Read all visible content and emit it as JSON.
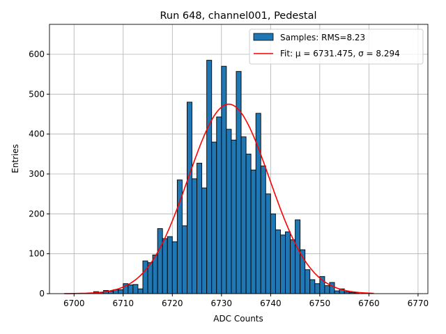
{
  "chart_data": {
    "type": "bar",
    "title": "Run 648, channel001, Pedestal",
    "xlabel": "ADC Counts",
    "ylabel": "Entries",
    "xlim": [
      6695,
      6772
    ],
    "ylim": [
      0,
      675
    ],
    "grid": true,
    "legend_placement": "top-right",
    "xticks": [
      6700,
      6710,
      6720,
      6730,
      6740,
      6750,
      6760,
      6770
    ],
    "yticks": [
      0,
      100,
      200,
      300,
      400,
      500,
      600
    ],
    "bins_start": 6704,
    "bin_width": 1,
    "values": [
      5,
      3,
      8,
      6,
      10,
      10,
      25,
      22,
      23,
      12,
      82,
      78,
      97,
      163,
      138,
      143,
      130,
      285,
      170,
      480,
      288,
      327,
      265,
      585,
      380,
      443,
      570,
      412,
      385,
      557,
      393,
      350,
      310,
      452,
      320,
      250,
      200,
      160,
      147,
      155,
      135,
      185,
      110,
      60,
      35,
      25,
      43,
      20,
      28,
      7,
      12,
      5,
      3,
      2
    ],
    "fit": {
      "mu": 6731.475,
      "sigma": 8.294,
      "amplitude": 475,
      "x_range": [
        6698,
        6761
      ]
    },
    "legend": [
      {
        "label": "Samples: RMS=8.23",
        "color": "#1f77b4"
      },
      {
        "label": "Fit: μ = 6731.475, σ = 8.294",
        "color": "#ff0000"
      }
    ],
    "colors": {
      "bar": "#1f77b4",
      "fit": "#ff0000",
      "grid": "#b0b0b0"
    }
  }
}
